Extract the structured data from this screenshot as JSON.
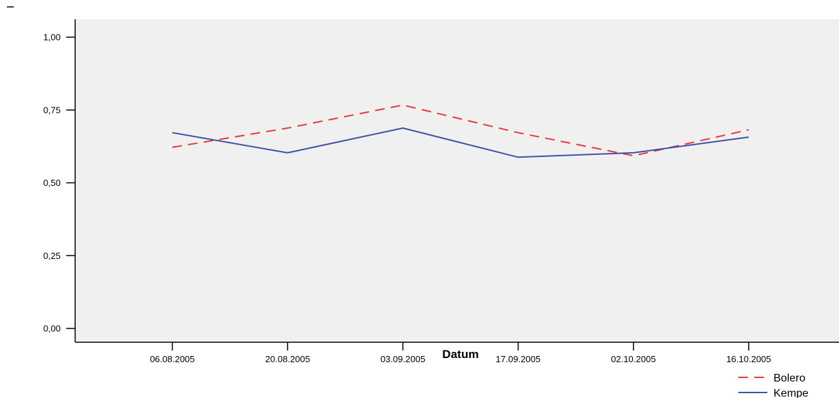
{
  "chart_data": {
    "type": "line",
    "title": "",
    "xlabel": "Datum",
    "ylabel": "",
    "categories": [
      "06.08.2005",
      "20.08.2005",
      "03.09.2005",
      "17.09.2005",
      "02.10.2005",
      "16.10.2005"
    ],
    "ylim": [
      0,
      1
    ],
    "yticks": [
      0,
      0.25,
      0.5,
      0.75,
      1
    ],
    "yticklabels": [
      "0,00",
      "0,25",
      "0,50",
      "0,75",
      "1,00"
    ],
    "series": [
      {
        "name": "Bolero",
        "values": [
          0.622,
          0.688,
          0.767,
          0.672,
          0.593,
          0.682
        ],
        "color": "#e8383d",
        "style": "dashed"
      },
      {
        "name": "Kempe",
        "values": [
          0.672,
          0.603,
          0.688,
          0.588,
          0.603,
          0.657
        ],
        "color": "#3f50a8",
        "style": "solid"
      }
    ],
    "grid": false,
    "legend": "bottom-right",
    "plot_background": "#f0f0f0"
  }
}
